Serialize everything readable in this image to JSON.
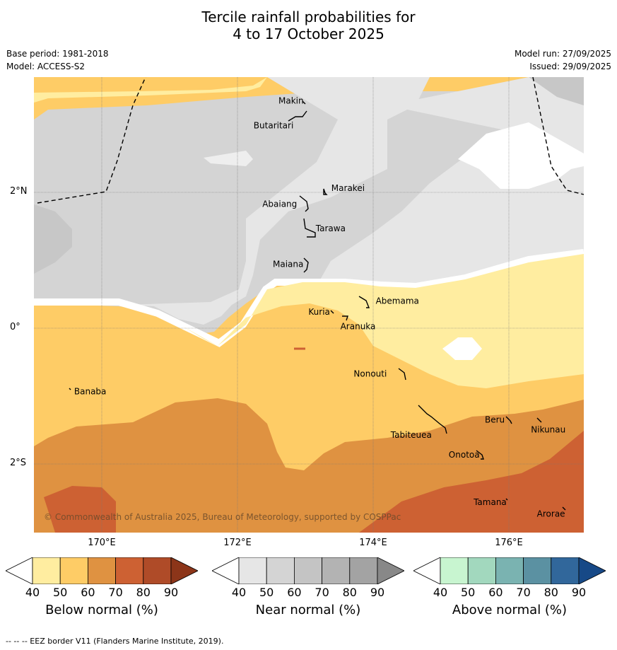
{
  "title": {
    "line1": "Tercile rainfall probabilities for",
    "line2": "4 to 17 October 2025"
  },
  "meta": {
    "base_period": "Base period: 1981-2018",
    "model": "Model: ACCESS-S2",
    "model_run": "Model run: 27/09/2025",
    "issued": "Issued: 29/09/2025"
  },
  "map": {
    "copyright": "© Commonwealth of Australia 2025, Bureau of Meteorology, supported by COSPPac",
    "lat_ticks": [
      {
        "label": "2°N",
        "value": 2
      },
      {
        "label": "0°",
        "value": 0
      },
      {
        "label": "2°S",
        "value": -2
      }
    ],
    "lon_ticks": [
      {
        "label": "170°E",
        "value": 170
      },
      {
        "label": "172°E",
        "value": 172
      },
      {
        "label": "174°E",
        "value": 174
      },
      {
        "label": "176°E",
        "value": 176
      }
    ],
    "places": [
      {
        "name": "Makin",
        "lon": 173.0,
        "lat": 3.33
      },
      {
        "name": "Butaritari",
        "lon": 172.8,
        "lat": 3.07
      },
      {
        "name": "Marakei",
        "lon": 173.3,
        "lat": 2.0
      },
      {
        "name": "Abaiang",
        "lon": 172.95,
        "lat": 1.85
      },
      {
        "name": "Tarawa",
        "lon": 173.05,
        "lat": 1.45
      },
      {
        "name": "Maiana",
        "lon": 173.0,
        "lat": 0.92
      },
      {
        "name": "Abemama",
        "lon": 173.85,
        "lat": 0.4
      },
      {
        "name": "Kuria",
        "lon": 173.4,
        "lat": 0.22
      },
      {
        "name": "Aranuka",
        "lon": 173.6,
        "lat": 0.17
      },
      {
        "name": "Nonouti",
        "lon": 174.4,
        "lat": -0.65
      },
      {
        "name": "Banaba",
        "lon": 169.53,
        "lat": -0.87
      },
      {
        "name": "Tabiteuea",
        "lon": 174.8,
        "lat": -1.3
      },
      {
        "name": "Beru",
        "lon": 176.0,
        "lat": -1.33
      },
      {
        "name": "Nikunau",
        "lon": 176.45,
        "lat": -1.37
      },
      {
        "name": "Onotoa",
        "lon": 175.55,
        "lat": -1.8
      },
      {
        "name": "Tamana",
        "lon": 175.98,
        "lat": -2.5
      },
      {
        "name": "Arorae",
        "lon": 176.83,
        "lat": -2.63
      }
    ]
  },
  "colorbars": [
    {
      "title": "Below normal (%)",
      "ticks": [
        "40",
        "50",
        "60",
        "70",
        "80",
        "90"
      ],
      "colors": [
        "#ffffff",
        "#ffeda0",
        "#fecc66",
        "#df9241",
        "#cd6133",
        "#af4b28",
        "#8c3519"
      ]
    },
    {
      "title": "Near normal (%)",
      "ticks": [
        "40",
        "50",
        "60",
        "70",
        "80",
        "90"
      ],
      "colors": [
        "#ffffff",
        "#e6e6e6",
        "#d4d4d4",
        "#c4c4c4",
        "#b3b3b3",
        "#a3a3a3",
        "#888888"
      ]
    },
    {
      "title": "Above normal (%)",
      "ticks": [
        "40",
        "50",
        "60",
        "70",
        "80",
        "90"
      ],
      "colors": [
        "#ffffff",
        "#c8f5d0",
        "#a2d8be",
        "#7ab3b1",
        "#5b91a2",
        "#31679b",
        "#174987"
      ]
    }
  ],
  "footer": "--  --  -- EEZ border V11 (Flanders Marine Institute, 2019)."
}
